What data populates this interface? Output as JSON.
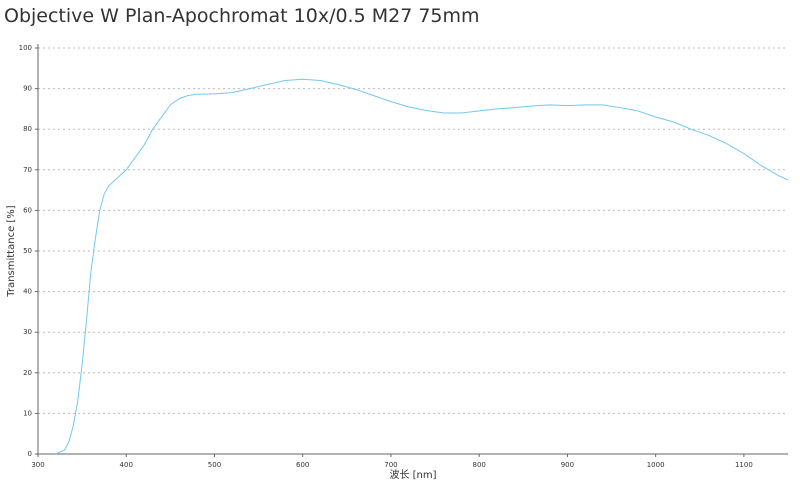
{
  "chart_data": {
    "type": "line",
    "title": "Objective W Plan-Apochromat 10x/0.5 M27 75mm",
    "x_label": "波长 [nm]",
    "y_label": "Transmittance [%]",
    "x": [
      320,
      330,
      335,
      340,
      345,
      350,
      355,
      360,
      365,
      370,
      375,
      380,
      390,
      400,
      410,
      420,
      430,
      440,
      450,
      460,
      470,
      480,
      500,
      520,
      540,
      560,
      580,
      600,
      620,
      640,
      660,
      680,
      700,
      720,
      740,
      760,
      780,
      800,
      820,
      840,
      860,
      880,
      900,
      920,
      940,
      960,
      980,
      1000,
      1020,
      1040,
      1060,
      1080,
      1100,
      1120,
      1140,
      1150
    ],
    "series": [
      {
        "name": "Transmittance",
        "color": "#74c8ee",
        "values": [
          0,
          1,
          3,
          7,
          13,
          22,
          33,
          45,
          53,
          60,
          64,
          66,
          68,
          70,
          73,
          76,
          80,
          83,
          86,
          87.5,
          88.3,
          88.6,
          88.7,
          89,
          90,
          91,
          92,
          92.3,
          92,
          91,
          89.8,
          88.3,
          86.8,
          85.5,
          84.6,
          84,
          84,
          84.5,
          85,
          85.3,
          85.7,
          86,
          85.8,
          86,
          86,
          85.3,
          84.5,
          83,
          81.8,
          80,
          78.5,
          76.5,
          74,
          71,
          68.5,
          67.5
        ]
      }
    ],
    "xlim": [
      300,
      1150
    ],
    "ylim": [
      0,
      100
    ],
    "xticks": [
      300,
      400,
      500,
      600,
      700,
      800,
      900,
      1000,
      1100
    ],
    "yticks": [
      0,
      10,
      20,
      30,
      40,
      50,
      60,
      70,
      80,
      90,
      100
    ],
    "grid": true
  }
}
